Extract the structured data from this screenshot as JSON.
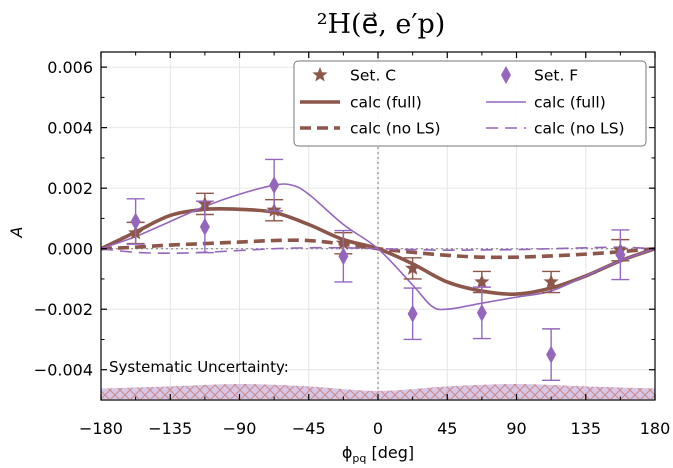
{
  "chart_data": {
    "type": "scatter",
    "title": "²H(e⃗, e′p)",
    "xlabel": "ϕ_pq [deg]",
    "ylabel": "A",
    "xlim": [
      -180,
      180
    ],
    "ylim": [
      -0.005,
      0.0065
    ],
    "xticks": [
      -180,
      -135,
      -90,
      -45,
      0,
      45,
      90,
      135,
      180
    ],
    "xtick_labels": [
      "−180",
      "−135",
      "−90",
      "−45",
      "0",
      "45",
      "90",
      "135",
      "180"
    ],
    "yticks": [
      -0.004,
      -0.002,
      0.0,
      0.002,
      0.004,
      0.006
    ],
    "ytick_labels": [
      "−0.004",
      "−0.002",
      "0.000",
      "0.002",
      "0.004",
      "0.006"
    ],
    "grid": true,
    "legend_position": "top-right",
    "annotation": "Systematic Uncertainty:",
    "colors": {
      "setC": "#8c564b",
      "setF": "#9467bd",
      "reference": "#999999"
    },
    "series": [
      {
        "name": "Set. C",
        "kind": "points",
        "marker": "star",
        "color": "#8c564b",
        "x": [
          -157.5,
          -112.5,
          -67.5,
          -22.5,
          22.5,
          67.5,
          112.5,
          157.5
        ],
        "y": [
          0.00052,
          0.00148,
          0.00127,
          0.00018,
          -0.00065,
          -0.0011,
          -0.0011,
          -5e-05
        ],
        "yerr": [
          0.00035,
          0.00035,
          0.00035,
          0.00035,
          0.00035,
          0.00035,
          0.00035,
          0.00035
        ]
      },
      {
        "name": "Set. F",
        "kind": "points",
        "marker": "diamond",
        "color": "#9467bd",
        "x": [
          -157.5,
          -112.5,
          -67.5,
          -22.5,
          22.5,
          67.5,
          112.5,
          157.5
        ],
        "y": [
          0.0009,
          0.00072,
          0.0021,
          -0.00025,
          -0.00215,
          -0.00212,
          -0.0035,
          -0.0002
        ],
        "yerr": [
          0.00075,
          0.00085,
          0.00085,
          0.00085,
          0.00085,
          0.00085,
          0.00085,
          0.00082
        ]
      },
      {
        "name": "calc (full)",
        "kind": "line",
        "style": "solid-thick",
        "color": "#8c564b",
        "x": [
          -180,
          -157.5,
          -135,
          -112.5,
          -90,
          -67.5,
          -45,
          -22.5,
          0,
          22.5,
          45,
          67.5,
          90,
          112.5,
          135,
          157.5,
          180
        ],
        "y": [
          0.0,
          0.00055,
          0.0011,
          0.0013,
          0.0013,
          0.0012,
          0.0008,
          0.0003,
          0.0,
          -0.0005,
          -0.0011,
          -0.0014,
          -0.0015,
          -0.0013,
          -0.0009,
          -0.0004,
          0.0
        ]
      },
      {
        "name": "calc (no LS)",
        "kind": "line",
        "style": "dashed-thick",
        "color": "#8c564b",
        "x": [
          -180,
          -157.5,
          -135,
          -112.5,
          -90,
          -67.5,
          -45,
          -22.5,
          0,
          22.5,
          45,
          67.5,
          90,
          112.5,
          135,
          157.5,
          180
        ],
        "y": [
          0.0,
          5e-05,
          0.00012,
          0.00017,
          0.00022,
          0.00027,
          0.00027,
          0.00015,
          0.0,
          -0.00012,
          -0.00022,
          -0.00028,
          -0.00028,
          -0.00024,
          -0.00018,
          -0.0001,
          0.0
        ]
      },
      {
        "name": "calc (full)",
        "kind": "line",
        "style": "solid-thin",
        "color": "#9467bd",
        "x": [
          -180,
          -157.5,
          -135,
          -112.5,
          -90,
          -67.5,
          -56,
          -45,
          -22.5,
          0,
          22.5,
          35,
          45,
          67.5,
          90,
          112.5,
          135,
          157.5,
          180
        ],
        "y": [
          0.0,
          0.0004,
          0.0009,
          0.0014,
          0.0018,
          0.0021,
          0.0021,
          0.0018,
          0.0008,
          0.0,
          -0.0012,
          -0.0019,
          -0.002,
          -0.0018,
          -0.0016,
          -0.0014,
          -0.0009,
          -0.0004,
          0.0
        ]
      },
      {
        "name": "calc (no LS)",
        "kind": "line",
        "style": "dashed-thin",
        "color": "#9467bd",
        "x": [
          -180,
          -157.5,
          -135,
          -112.5,
          -90,
          -67.5,
          -45,
          -22.5,
          0,
          22.5,
          45,
          67.5,
          90,
          112.5,
          135,
          157.5,
          180
        ],
        "y": [
          0.0,
          -0.00012,
          -0.00015,
          -0.00012,
          -6e-05,
          0.0,
          3e-05,
          3e-05,
          0.0,
          -3e-05,
          -5e-05,
          -4e-05,
          -3e-05,
          0.0,
          3e-05,
          5e-05,
          0.0
        ]
      }
    ],
    "systematic_band": {
      "x": [
        -180,
        -135,
        -90,
        -45,
        0,
        45,
        90,
        135,
        180
      ],
      "upper": [
        -0.00462,
        -0.00455,
        -0.00447,
        -0.00455,
        -0.0047,
        -0.00455,
        -0.00447,
        -0.00455,
        -0.00462
      ],
      "lower": [
        -0.00497,
        -0.00497,
        -0.00497,
        -0.00497,
        -0.00497,
        -0.00497,
        -0.00497,
        -0.00497,
        -0.00497
      ]
    }
  }
}
